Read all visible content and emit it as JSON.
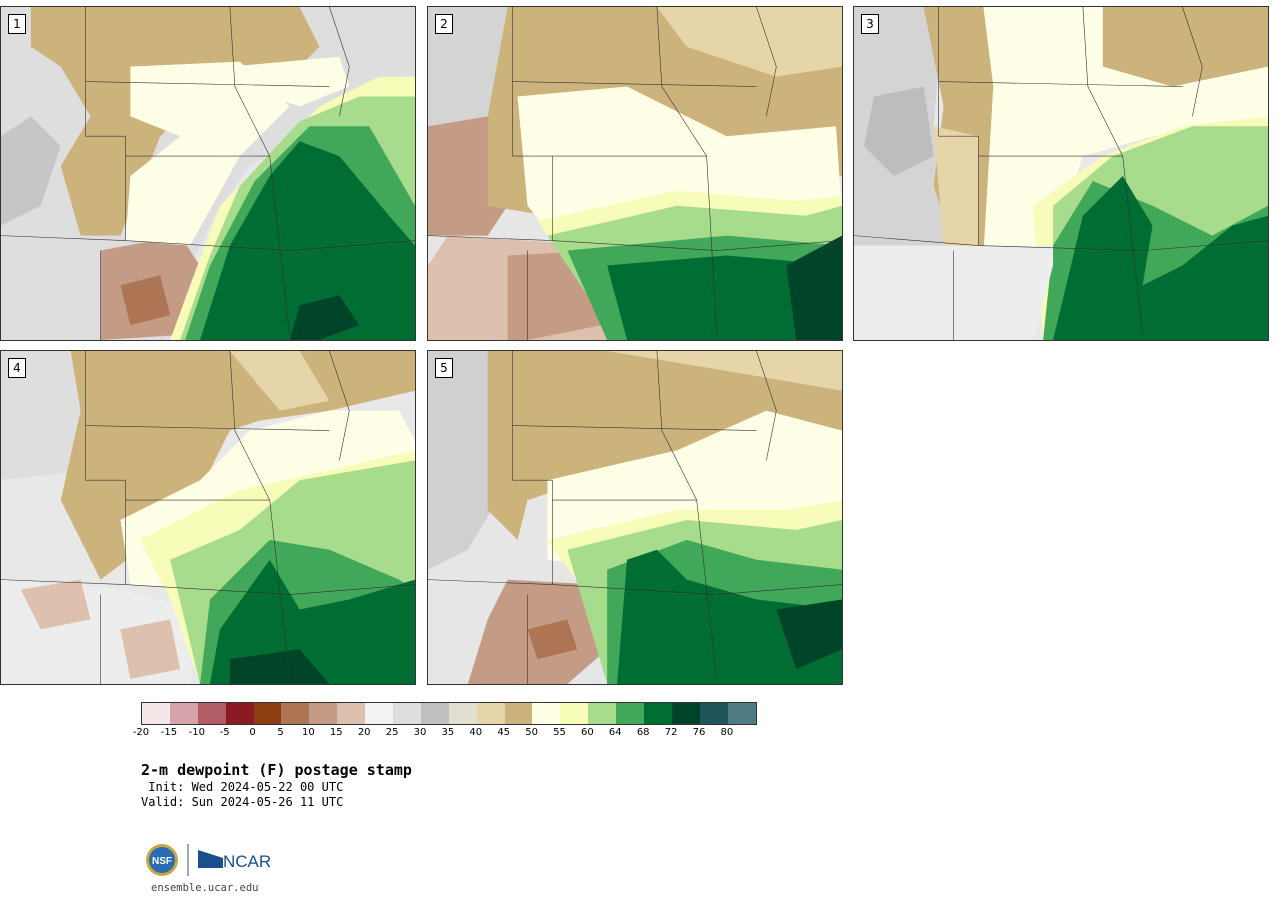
{
  "panels": [
    {
      "label": "1"
    },
    {
      "label": "2"
    },
    {
      "label": "3"
    },
    {
      "label": "4"
    },
    {
      "label": "5"
    }
  ],
  "colorbar": {
    "ticks": [
      "-20",
      "-15",
      "-10",
      "-5",
      "0",
      "5",
      "10",
      "15",
      "20",
      "25",
      "30",
      "35",
      "40",
      "45",
      "50",
      "55",
      "60",
      "64",
      "68",
      "72",
      "76",
      "80"
    ],
    "colors": [
      "#f5e6e8",
      "#d6a3aa",
      "#b05d66",
      "#8b1a22",
      "#8c3f12",
      "#ad7553",
      "#c49c85",
      "#ddc0ad",
      "#f2f2f2",
      "#dedede",
      "#bfbfbf",
      "#e0dfd0",
      "#e5d5a8",
      "#ccb37b",
      "#fffee6",
      "#f7fcb8",
      "#a8dc8d",
      "#41a85a",
      "#006d32",
      "#00442a",
      "#1f5458",
      "#4f7b82"
    ]
  },
  "title": "2-m dewpoint (F) postage stamp",
  "init": " Init: Wed 2024-05-22 00 UTC",
  "valid": "Valid: Sun 2024-05-26 11 UTC",
  "url": "ensemble.ucar.edu",
  "logos": {
    "nsf": "NSF",
    "ncar": "NCAR"
  }
}
